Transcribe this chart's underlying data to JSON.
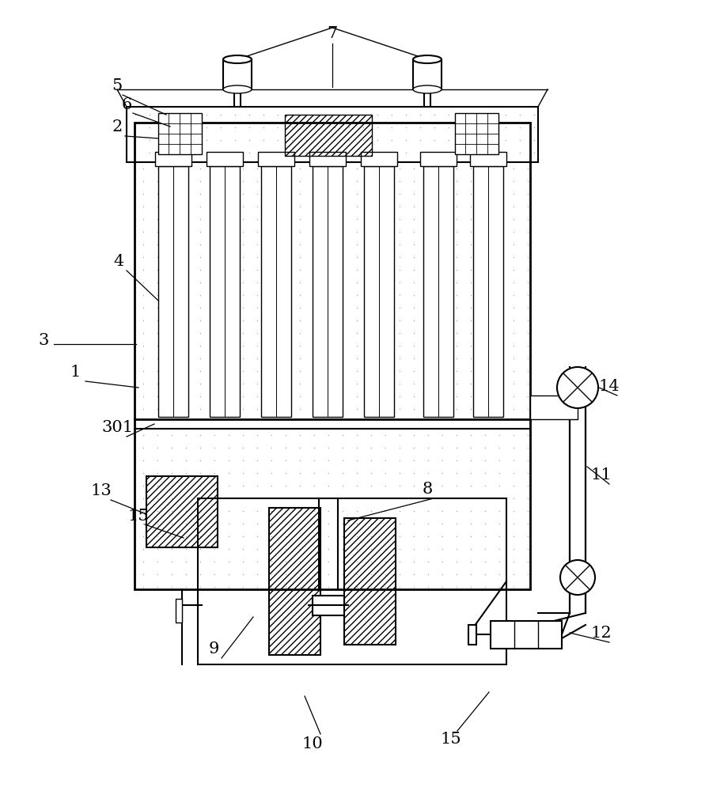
{
  "bg_color": "#ffffff",
  "lc": "#000000",
  "lw": 1.5,
  "tlw": 1.0,
  "figsize": [
    9.15,
    10.0
  ],
  "dpi": 100
}
